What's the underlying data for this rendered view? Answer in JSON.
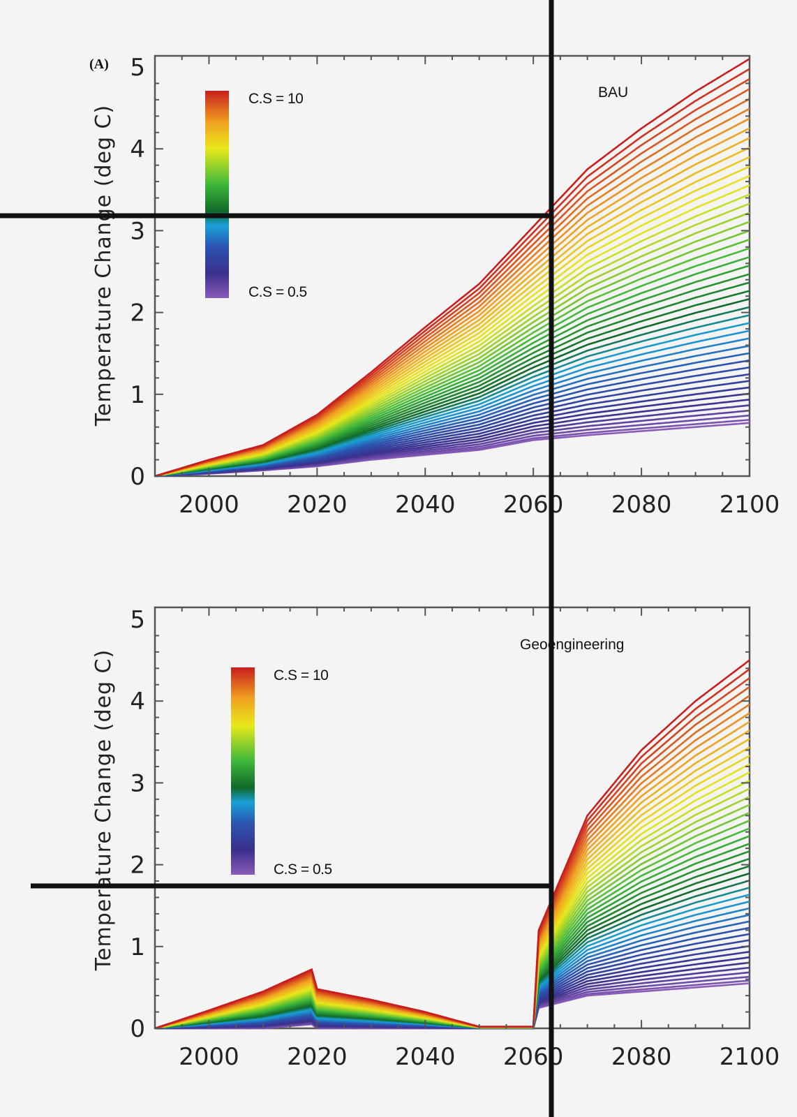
{
  "chart_data": [
    {
      "type": "line",
      "panel_label": "(A)",
      "annotation": "BAU",
      "xlabel": "",
      "ylabel": "Temperature  Change  (deg C)",
      "xlim": [
        1990,
        2100
      ],
      "ylim": [
        0,
        5.2
      ],
      "x_ticks": [
        "2000",
        "2020",
        "2040",
        "2060",
        "2080",
        "2100"
      ],
      "y_ticks": [
        "0",
        "1",
        "2",
        "3",
        "4",
        "5"
      ],
      "grid": false,
      "colorbar": {
        "top_label": "C.S = 10",
        "bottom_label": "C.S = 0.5"
      },
      "series_note": "family of curves, one per climate sensitivity from 0.5 (purple) to 10 (red)",
      "x": [
        1990,
        2000,
        2010,
        2020,
        2030,
        2040,
        2050,
        2060,
        2070,
        2080,
        2090,
        2100
      ],
      "envelope_high": [
        0,
        0.2,
        0.38,
        0.75,
        1.27,
        1.82,
        2.35,
        3.05,
        3.75,
        4.25,
        4.7,
        5.1
      ],
      "envelope_low": [
        0,
        0.03,
        0.07,
        0.12,
        0.2,
        0.26,
        0.32,
        0.44,
        0.5,
        0.55,
        0.6,
        0.65
      ],
      "reference_lines": {
        "x": 2063,
        "y": 3.2
      }
    },
    {
      "type": "line",
      "panel_label": "",
      "annotation": "Geoengineering",
      "xlabel": "",
      "ylabel": "Temperature  Change  (deg C)",
      "xlim": [
        1990,
        2100
      ],
      "ylim": [
        0,
        5.1
      ],
      "x_ticks": [
        "2000",
        "2020",
        "2040",
        "2060",
        "2080",
        "2100"
      ],
      "y_ticks": [
        "0",
        "1",
        "2",
        "3",
        "4",
        "5"
      ],
      "grid": false,
      "colorbar": {
        "top_label": "C.S = 10",
        "bottom_label": "C.S = 0.5"
      },
      "series_note": "family of curves, one per climate sensitivity from 0.5 (purple) to 10 (red)",
      "x": [
        1990,
        2000,
        2010,
        2019,
        2020,
        2030,
        2040,
        2050,
        2060,
        2061,
        2070,
        2080,
        2090,
        2100
      ],
      "envelope_high": [
        0,
        0.22,
        0.45,
        0.72,
        0.48,
        0.35,
        0.2,
        0.02,
        0.02,
        1.2,
        2.6,
        3.4,
        4.0,
        4.5
      ],
      "envelope_low": [
        0,
        0,
        0,
        0.05,
        0,
        0,
        0,
        0,
        0,
        0.25,
        0.4,
        0.45,
        0.5,
        0.55
      ],
      "reference_lines": {
        "x": 2063,
        "y": 1.6
      }
    }
  ],
  "colors": {
    "overlay_lines": "#111111",
    "axis": "#555555",
    "colorbar_stops": [
      "#7a4ca8",
      "#3a2f8c",
      "#2aa0e0",
      "#1a7f2a",
      "#3cb83a",
      "#e5e51a",
      "#f0a81a",
      "#e04a1a",
      "#c81e1e"
    ]
  }
}
